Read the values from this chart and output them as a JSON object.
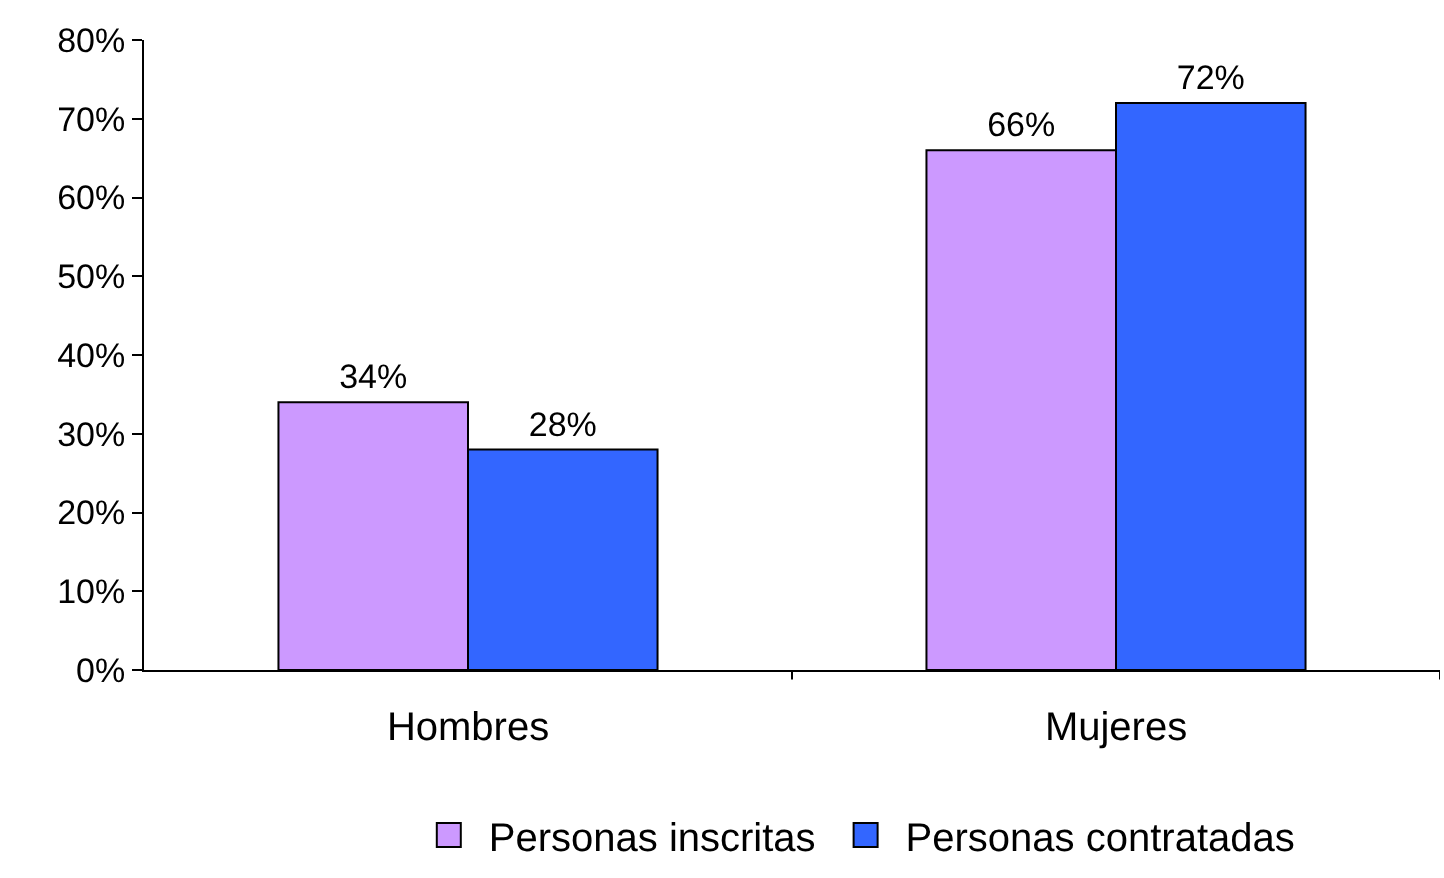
{
  "chart_data": {
    "type": "bar",
    "categories": [
      "Hombres",
      "Mujeres"
    ],
    "series": [
      {
        "name": "Personas inscritas",
        "color": "#cc99ff",
        "values": [
          34,
          66
        ],
        "value_labels": [
          "34%",
          "66%"
        ]
      },
      {
        "name": "Personas contratadas",
        "color": "#3366ff",
        "values": [
          28,
          72
        ],
        "value_labels": [
          "28%",
          "72%"
        ]
      }
    ],
    "ylim": [
      0,
      80
    ],
    "yticks": [
      {
        "value": 0,
        "label": "0%"
      },
      {
        "value": 10,
        "label": "10%"
      },
      {
        "value": 20,
        "label": "20%"
      },
      {
        "value": 30,
        "label": "30%"
      },
      {
        "value": 40,
        "label": "40%"
      },
      {
        "value": 50,
        "label": "50%"
      },
      {
        "value": 60,
        "label": "60%"
      },
      {
        "value": 70,
        "label": "70%"
      },
      {
        "value": 80,
        "label": "80%"
      }
    ],
    "legend": "bottom"
  }
}
